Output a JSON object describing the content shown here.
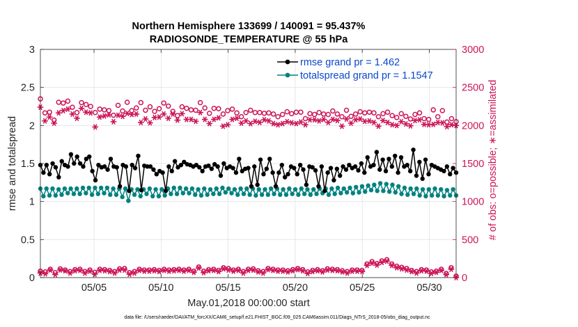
{
  "chart_data": {
    "type": "line",
    "title_line1": "Northern Hemisphere 133699 / 140091 = 95.437%",
    "title_line2": "RADIOSONDE_TEMPERATURE @ 55 hPa",
    "xlabel": "May.01,2018 00:00:00 start",
    "ylabel_left": "rmse and totalspread",
    "ylabel_right": "# of obs: o=possible; ∗=assimilated",
    "footer": "data file: /Users/raeder/DAI/ATM_forcXX/CAM6_setup/f.e21.FHIST_BGC.f09_025.CAM6assim.011/Diags_NTrS_2018-05/obs_diag_output.nc",
    "x_range": [
      1,
      32
    ],
    "x_ticks": [
      5,
      10,
      15,
      20,
      25,
      30
    ],
    "x_tick_labels": [
      "05/05",
      "05/10",
      "05/15",
      "05/20",
      "05/25",
      "05/30"
    ],
    "ylim_left": [
      0,
      3
    ],
    "y_ticks_left": [
      "0",
      "0.5",
      "1",
      "1.5",
      "2",
      "2.5",
      "3"
    ],
    "ylim_right": [
      0,
      3000
    ],
    "y_ticks_right": [
      "0",
      "500",
      "1000",
      "1500",
      "2000",
      "2500",
      "3000"
    ],
    "grid": true,
    "legend": [
      "rmse grand pr = 1.462",
      "totalspread grand pr = 1.1547"
    ],
    "colors": {
      "rmse": "#000000",
      "spread": "#00827f",
      "obs": "#cc1457",
      "grid": "#e2e2e2"
    },
    "series": [
      {
        "name": "rmse",
        "axis": "left",
        "values": [
          1.48,
          1.38,
          1.48,
          1.36,
          1.5,
          1.45,
          1.32,
          1.53,
          1.48,
          1.46,
          1.62,
          1.5,
          1.59,
          1.5,
          1.46,
          1.56,
          1.59,
          1.4,
          1.28,
          1.48,
          1.45,
          1.46,
          1.42,
          1.56,
          1.46,
          1.45,
          1.2,
          1.48,
          1.46,
          1.14,
          1.48,
          1.44,
          1.6,
          1.15,
          1.47,
          1.46,
          1.46,
          1.42,
          1.36,
          1.4,
          1.38,
          1.14,
          1.46,
          1.4,
          1.53,
          1.45,
          1.48,
          1.52,
          1.49,
          1.48,
          1.46,
          1.48,
          1.45,
          1.4,
          1.46,
          1.47,
          1.43,
          1.49,
          1.46,
          1.34,
          1.5,
          1.44,
          1.46,
          1.44,
          1.38,
          1.56,
          1.4,
          1.43,
          1.44,
          1.2,
          1.46,
          1.22,
          1.55,
          1.36,
          1.43,
          1.56,
          1.38,
          1.2,
          1.38,
          1.48,
          1.32,
          1.36,
          1.46,
          1.44,
          1.36,
          1.48,
          1.42,
          1.22,
          1.46,
          1.45,
          1.41,
          1.2,
          1.46,
          1.14,
          1.38,
          1.44,
          1.28,
          1.43,
          1.34,
          1.46,
          1.42,
          1.48,
          1.44,
          1.46,
          1.41,
          1.5,
          1.38,
          1.58,
          1.46,
          1.48,
          1.65,
          1.42,
          1.55,
          1.4,
          1.56,
          1.46,
          1.6,
          1.38,
          1.58,
          1.46,
          1.48,
          1.4,
          1.68,
          1.34,
          1.52,
          1.3,
          1.55,
          1.36,
          1.48,
          1.46,
          1.44,
          1.42,
          1.4,
          1.46,
          1.36,
          1.44,
          1.38
        ]
      },
      {
        "name": "totalspread",
        "axis": "left",
        "values": [
          1.17,
          1.07,
          1.17,
          1.08,
          1.17,
          1.08,
          1.16,
          1.09,
          1.17,
          1.11,
          1.17,
          1.1,
          1.17,
          1.1,
          1.18,
          1.11,
          1.18,
          1.09,
          1.18,
          1.1,
          1.18,
          1.11,
          1.18,
          1.09,
          1.17,
          1.09,
          1.17,
          1.06,
          1.17,
          1.01,
          1.16,
          1.09,
          1.16,
          1.07,
          1.16,
          1.1,
          1.17,
          1.07,
          1.16,
          1.07,
          1.16,
          1.08,
          1.17,
          1.1,
          1.18,
          1.1,
          1.18,
          1.11,
          1.17,
          1.11,
          1.17,
          1.09,
          1.16,
          1.08,
          1.17,
          1.09,
          1.16,
          1.1,
          1.17,
          1.1,
          1.18,
          1.12,
          1.17,
          1.11,
          1.16,
          1.09,
          1.17,
          1.1,
          1.17,
          1.09,
          1.17,
          1.08,
          1.16,
          1.09,
          1.16,
          1.09,
          1.17,
          1.1,
          1.17,
          1.09,
          1.16,
          1.09,
          1.17,
          1.1,
          1.16,
          1.09,
          1.17,
          1.1,
          1.16,
          1.09,
          1.16,
          1.1,
          1.17,
          1.11,
          1.17,
          1.09,
          1.17,
          1.1,
          1.18,
          1.11,
          1.17,
          1.12,
          1.18,
          1.11,
          1.19,
          1.12,
          1.2,
          1.13,
          1.21,
          1.15,
          1.22,
          1.14,
          1.24,
          1.14,
          1.23,
          1.13,
          1.22,
          1.12,
          1.2,
          1.1,
          1.18,
          1.09,
          1.17,
          1.1,
          1.17,
          1.08,
          1.16,
          1.07,
          1.16,
          1.08,
          1.17,
          1.08,
          1.16,
          1.07,
          1.15,
          1.08,
          1.16,
          1.08
        ]
      },
      {
        "name": "possible",
        "axis": "right",
        "values": [
          2350,
          2165,
          2175,
          2070,
          2305,
          2295,
          2320,
          2240,
          2170,
          2300,
          2275,
          2250,
          2170,
          2215,
          2205,
          2195,
          2135,
          2265,
          2190,
          2305,
          2195,
          2230,
          2300,
          2200,
          2245,
          2185,
          2220,
          2295,
          2255,
          2185,
          2130,
          2245,
          2225,
          2205,
          2200,
          2300,
          2230,
          2160,
          2225,
          2220,
          2150,
          2195,
          2215,
          2165,
          2115,
          2170,
          2200,
          2170,
          2170,
          2160,
          2165,
          2150,
          2115,
          2145,
          2180,
          2155,
          2175,
          2175,
          2090,
          2155,
          2145,
          2170,
          2150,
          2145,
          2190,
          2150,
          2115,
          2200,
          2120,
          2150,
          2180,
          2165,
          2175,
          2165,
          2115,
          2155,
          2175,
          2130,
          2105,
          2155,
          2120,
          2085,
          2145,
          2165,
          2090,
          2080,
          2205,
          2115,
          2195,
          2045,
          2090,
          2050
        ]
      },
      {
        "name": "assimilated",
        "axis": "right",
        "values": [
          2240,
          2060,
          2110,
          2030,
          2165,
          2195,
          2215,
          2150,
          2095,
          2225,
          2175,
          2165,
          1980,
          2110,
          2125,
          2140,
          2050,
          2135,
          2120,
          2160,
          2145,
          2150,
          2040,
          2085,
          2035,
          2105,
          2110,
          2150,
          2095,
          2150,
          2070,
          2155,
          2080,
          2080,
          2055,
          2170,
          2080,
          2025,
          2080,
          2100,
          1990,
          2010,
          2080,
          2095,
          2030,
          2060,
          2025,
          2055,
          2040,
          2075,
          2060,
          2025,
          2010,
          2025,
          2050,
          2035,
          2025,
          2045,
          2010,
          2075,
          2075,
          2060,
          2080,
          2040,
          2080,
          2065,
          1990,
          2085,
          2030,
          2075,
          2085,
          2055,
          2060,
          2040,
          1990,
          2065,
          2040,
          2010,
          2000,
          2050,
          2020,
          1995,
          2065,
          2075,
          2015,
          2010,
          2015,
          2040,
          2035,
          1985,
          2010,
          2000
        ]
      },
      {
        "name": "possible_low",
        "axis": "right",
        "values": [
          85,
          75,
          110,
          65,
          115,
          100,
          80,
          105,
          110,
          80,
          100,
          70,
          110,
          105,
          95,
          80,
          115,
          120,
          65,
          80,
          110,
          100,
          100,
          105,
          95,
          110,
          100,
          105,
          110,
          100,
          110,
          85,
          140,
          85,
          105,
          110,
          95,
          130,
          120,
          100,
          110,
          80,
          110,
          115,
          90,
          80,
          120,
          110,
          100,
          100,
          90,
          105,
          120,
          105,
          75,
          95,
          105,
          90,
          115,
          110,
          105,
          90,
          80,
          100,
          100,
          95,
          180,
          210,
          185,
          220,
          235,
          180,
          150,
          135,
          120,
          95,
          80,
          105,
          100,
          75,
          85,
          110,
          55,
          130,
          20
        ]
      },
      {
        "name": "assimilated_low",
        "axis": "right",
        "values": [
          60,
          50,
          100,
          40,
          100,
          90,
          60,
          90,
          95,
          60,
          85,
          45,
          95,
          90,
          80,
          60,
          100,
          100,
          45,
          60,
          95,
          85,
          85,
          90,
          80,
          95,
          85,
          90,
          95,
          85,
          95,
          70,
          125,
          65,
          90,
          95,
          80,
          115,
          100,
          85,
          95,
          60,
          95,
          100,
          75,
          60,
          105,
          95,
          85,
          85,
          75,
          90,
          105,
          90,
          55,
          80,
          90,
          75,
          100,
          95,
          90,
          75,
          60,
          85,
          85,
          80,
          160,
          190,
          165,
          200,
          215,
          160,
          130,
          115,
          100,
          80,
          60,
          90,
          85,
          55,
          70,
          95,
          40,
          110,
          0
        ]
      }
    ]
  }
}
